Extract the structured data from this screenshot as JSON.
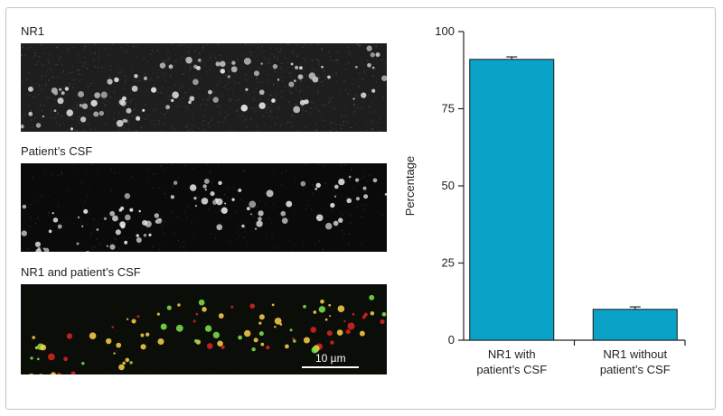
{
  "panels": {
    "nr1_label": "NR1",
    "csf_label": "Patient’s CSF",
    "merge_label": "NR1 and patient’s CSF",
    "scalebar_label": "10 µm"
  },
  "colors": {
    "bar_fill": "#0aa2c6",
    "bar_stroke": "#1a1a1a",
    "merge_green": "#7fe84b",
    "merge_red": "#e0261e",
    "merge_yellow": "#ffd24a"
  },
  "chart_data": {
    "type": "bar",
    "categories": [
      [
        "NR1 with",
        "patient’s CSF"
      ],
      [
        "NR1 without",
        "patient’s CSF"
      ]
    ],
    "values": [
      91,
      10
    ],
    "errors": [
      0.8,
      0.8
    ],
    "title": "",
    "xlabel": "",
    "ylabel": "Percentage",
    "ylim": [
      0,
      100
    ],
    "yticks": [
      0,
      25,
      50,
      75,
      100
    ],
    "grid": false
  }
}
